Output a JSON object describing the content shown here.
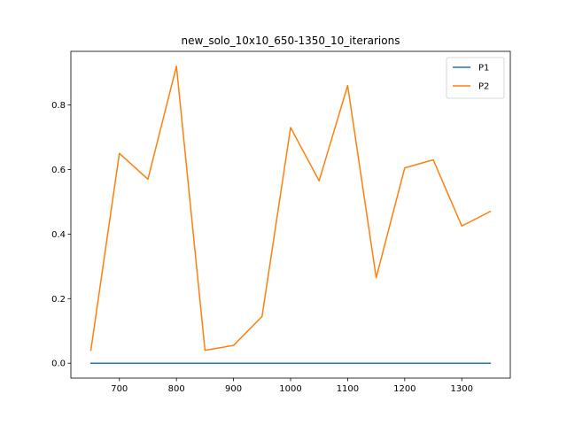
{
  "chart_data": {
    "type": "line",
    "title": "new_solo_10x10_650-1350_10_iterarions",
    "xlabel": "",
    "ylabel": "",
    "x": [
      650,
      700,
      750,
      800,
      850,
      900,
      950,
      1000,
      1050,
      1100,
      1150,
      1200,
      1250,
      1300,
      1350
    ],
    "xlim": [
      615,
      1385
    ],
    "ylim": [
      -0.046,
      0.966
    ],
    "xticks": [
      700,
      800,
      900,
      1000,
      1100,
      1200,
      1300
    ],
    "yticks": [
      0.0,
      0.2,
      0.4,
      0.6,
      0.8
    ],
    "ytick_labels": [
      "0.0",
      "0.2",
      "0.4",
      "0.6",
      "0.8"
    ],
    "grid": false,
    "legend_position": "top-right",
    "series": [
      {
        "name": "P1",
        "color": "#1f77b4",
        "values": [
          0,
          0,
          0,
          0,
          0,
          0,
          0,
          0,
          0,
          0,
          0,
          0,
          0,
          0,
          0
        ]
      },
      {
        "name": "P2",
        "color": "#ff7f0e",
        "values": [
          0.04,
          0.65,
          0.57,
          0.92,
          0.04,
          0.055,
          0.145,
          0.73,
          0.565,
          0.86,
          0.265,
          0.605,
          0.63,
          0.425,
          0.47
        ]
      }
    ]
  }
}
